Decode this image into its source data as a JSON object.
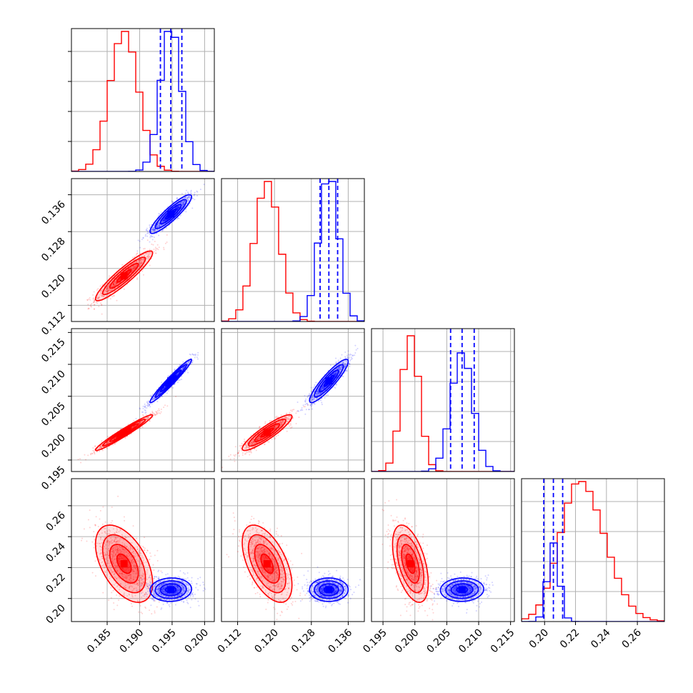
{
  "chart_data": {
    "type": "corner",
    "grid": true,
    "colors": {
      "series_a": "#ff0000",
      "series_b": "#0000ff"
    },
    "params": [
      {
        "range": [
          0.1795,
          0.2015
        ],
        "ticks": [
          "0.185",
          "0.190",
          "0.195",
          "0.200"
        ]
      },
      {
        "range": [
          0.1085,
          0.1395
        ],
        "ticks": [
          "0.112",
          "0.120",
          "0.128",
          "0.136"
        ]
      },
      {
        "range": [
          0.1932,
          0.2156
        ],
        "ticks": [
          "0.195",
          "0.200",
          "0.205",
          "0.210",
          "0.215"
        ]
      },
      {
        "range": [
          0.1851,
          0.2775
        ],
        "ticks": [
          "0.20",
          "0.22",
          "0.24",
          "0.26"
        ]
      }
    ],
    "series": [
      {
        "color": "#ff0000",
        "mean": [
          0.1876,
          0.1184,
          0.1993,
          0.2225
        ],
        "sd": [
          0.0022,
          0.0027,
          0.0014,
          0.0125
        ],
        "corr": [
          [
            1,
            0.92,
            0.97,
            -0.5
          ],
          [
            0.92,
            1,
            0.9,
            -0.55
          ],
          [
            0.97,
            0.9,
            1,
            -0.5
          ],
          [
            -0.5,
            -0.55,
            -0.5,
            1
          ]
        ],
        "hist_peaks": [
          0.98,
          0.98,
          0.95,
          0.98
        ]
      },
      {
        "color": "#0000ff",
        "mean": [
          0.1948,
          0.1318,
          0.2074,
          0.2057
        ],
        "sd": [
          0.0016,
          0.0021,
          0.0017,
          0.0038
        ],
        "corr": [
          [
            1,
            0.9,
            0.97,
            0.05
          ],
          [
            0.9,
            1,
            0.9,
            0.0
          ],
          [
            0.97,
            0.9,
            1,
            0.05
          ],
          [
            0.05,
            0.0,
            0.05,
            1
          ]
        ],
        "hist_peaks": [
          0.98,
          0.98,
          0.83,
          0.55
        ],
        "quantiles": [
          [
            0.1932,
            0.1948,
            0.1965
          ],
          [
            0.1299,
            0.1318,
            0.1337
          ],
          [
            0.2056,
            0.2074,
            0.2093
          ],
          [
            0.1995,
            0.2057,
            0.2117
          ]
        ]
      }
    ]
  }
}
